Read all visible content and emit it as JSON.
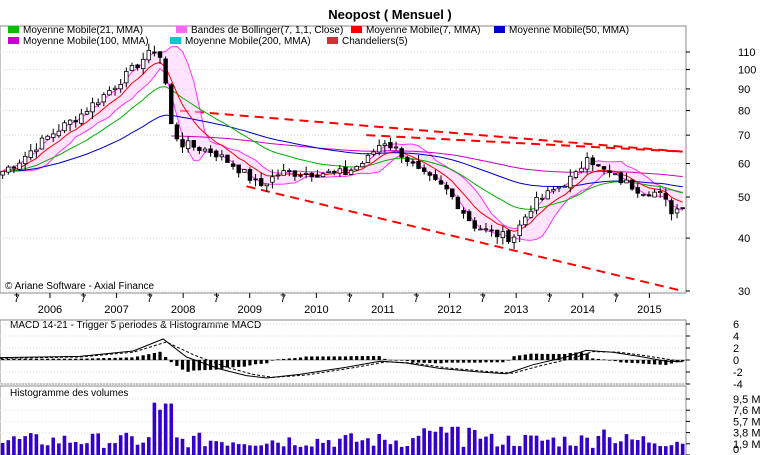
{
  "chart_data": [
    {
      "type": "line",
      "title": "Neopost  ( Mensuel )",
      "watermark": "© Ariane Software - Axial Finance",
      "y_scale": "log",
      "ylim": [
        30,
        120
      ],
      "yticks": [
        30,
        40,
        50,
        60,
        70,
        80,
        90,
        100,
        110
      ],
      "x_year_labels": [
        "2006",
        "2007",
        "2008",
        "2009",
        "2010",
        "2011",
        "2012",
        "2013",
        "2014",
        "2015"
      ],
      "x_mid_label": "7",
      "x_range": [
        2005.3,
        2015.6
      ],
      "legend": [
        {
          "name": "Moyenne Mobile(21, MMA)",
          "color": "#00c000"
        },
        {
          "name": "Bandes de Bollinger(7, 1,1, Close)",
          "color": "#ff66ff"
        },
        {
          "name": "Moyenne Mobile(7, MMA)",
          "color": "#ff0000"
        },
        {
          "name": "Moyenne Mobile(50, MMA)",
          "color": "#0000cc"
        },
        {
          "name": "Moyenne Mobile(100, MMA)",
          "color": "#cc00cc"
        },
        {
          "name": "Moyenne Mobile(200, MMA)",
          "color": "#00cccc"
        },
        {
          "name": "Chandeliers(5)",
          "color": "#cc3333"
        }
      ],
      "close_key_points": [
        [
          2005.3,
          57
        ],
        [
          2005.6,
          61
        ],
        [
          2006.0,
          69
        ],
        [
          2006.5,
          78
        ],
        [
          2006.9,
          88
        ],
        [
          2007.2,
          97
        ],
        [
          2007.45,
          106
        ],
        [
          2007.65,
          112
        ],
        [
          2007.75,
          103
        ],
        [
          2007.85,
          75
        ],
        [
          2008.0,
          67
        ],
        [
          2008.5,
          64
        ],
        [
          2008.9,
          58
        ],
        [
          2009.2,
          53
        ],
        [
          2009.5,
          57
        ],
        [
          2010.0,
          57
        ],
        [
          2010.5,
          57
        ],
        [
          2010.8,
          61
        ],
        [
          2011.05,
          68
        ],
        [
          2011.3,
          64
        ],
        [
          2011.6,
          57
        ],
        [
          2012.0,
          52
        ],
        [
          2012.4,
          43
        ],
        [
          2012.7,
          41
        ],
        [
          2013.0,
          40
        ],
        [
          2013.3,
          48
        ],
        [
          2013.7,
          53
        ],
        [
          2014.0,
          57
        ],
        [
          2014.1,
          64
        ],
        [
          2014.25,
          59
        ],
        [
          2014.6,
          55
        ],
        [
          2014.9,
          52
        ],
        [
          2015.2,
          51
        ],
        [
          2015.4,
          46
        ],
        [
          2015.55,
          48
        ]
      ],
      "trend_lines": [
        {
          "from": [
            2008.0,
            80
          ],
          "to": [
            2015.55,
            64
          ]
        },
        {
          "from": [
            2009.0,
            53
          ],
          "to": [
            2015.55,
            30
          ]
        },
        {
          "from": [
            2010.8,
            70
          ],
          "to": [
            2015.55,
            64
          ]
        }
      ],
      "up_color": "#ffffff",
      "down_color": "#000000",
      "trend_color": "#ff0000"
    },
    {
      "type": "line",
      "title": "MACD 14-21 - Trigger 5 periodes & Histogramme MACD",
      "ylim": [
        -4,
        6
      ],
      "yticks": [
        6,
        4,
        2,
        0,
        -2,
        -4
      ],
      "series": [
        {
          "name": "MACD 14-21",
          "values": [
            [
              2005.3,
              0.4
            ],
            [
              2006.5,
              0.6
            ],
            [
              2007.3,
              1.5
            ],
            [
              2007.75,
              3.5
            ],
            [
              2008.1,
              0.5
            ],
            [
              2008.6,
              -1.5
            ],
            [
              2009.0,
              -2.6
            ],
            [
              2009.3,
              -3.0
            ],
            [
              2009.8,
              -2.4
            ],
            [
              2010.5,
              -1.2
            ],
            [
              2011.0,
              -0.2
            ],
            [
              2011.4,
              -0.5
            ],
            [
              2011.9,
              -1.4
            ],
            [
              2012.5,
              -2.0
            ],
            [
              2012.9,
              -2.3
            ],
            [
              2013.3,
              -0.8
            ],
            [
              2013.8,
              0.5
            ],
            [
              2014.1,
              1.6
            ],
            [
              2014.5,
              1.3
            ],
            [
              2014.9,
              0.6
            ],
            [
              2015.3,
              -0.2
            ],
            [
              2015.55,
              -0.3
            ]
          ]
        },
        {
          "name": "Trigger 5 periodes",
          "values": [
            [
              2005.3,
              0.3
            ],
            [
              2006.5,
              0.5
            ],
            [
              2007.3,
              1.3
            ],
            [
              2007.8,
              3.0
            ],
            [
              2008.2,
              0.9
            ],
            [
              2008.7,
              -1.2
            ],
            [
              2009.1,
              -2.4
            ],
            [
              2009.4,
              -2.9
            ],
            [
              2009.9,
              -2.5
            ],
            [
              2010.6,
              -1.3
            ],
            [
              2011.1,
              -0.3
            ],
            [
              2011.5,
              -0.5
            ],
            [
              2012.0,
              -1.3
            ],
            [
              2012.6,
              -1.9
            ],
            [
              2013.0,
              -2.2
            ],
            [
              2013.4,
              -1.0
            ],
            [
              2013.9,
              0.3
            ],
            [
              2014.2,
              1.4
            ],
            [
              2014.6,
              1.3
            ],
            [
              2015.0,
              0.7
            ],
            [
              2015.4,
              0.0
            ],
            [
              2015.55,
              -0.2
            ]
          ]
        }
      ]
    },
    {
      "type": "bar",
      "title": "Histogramme des volumes",
      "ylim": [
        0,
        9.5
      ],
      "yticks": [
        "9,5 M",
        "7,6 M",
        "5,7 M",
        "3,8 M",
        "1,9 M",
        "0"
      ],
      "color": "#3300cc"
    }
  ]
}
